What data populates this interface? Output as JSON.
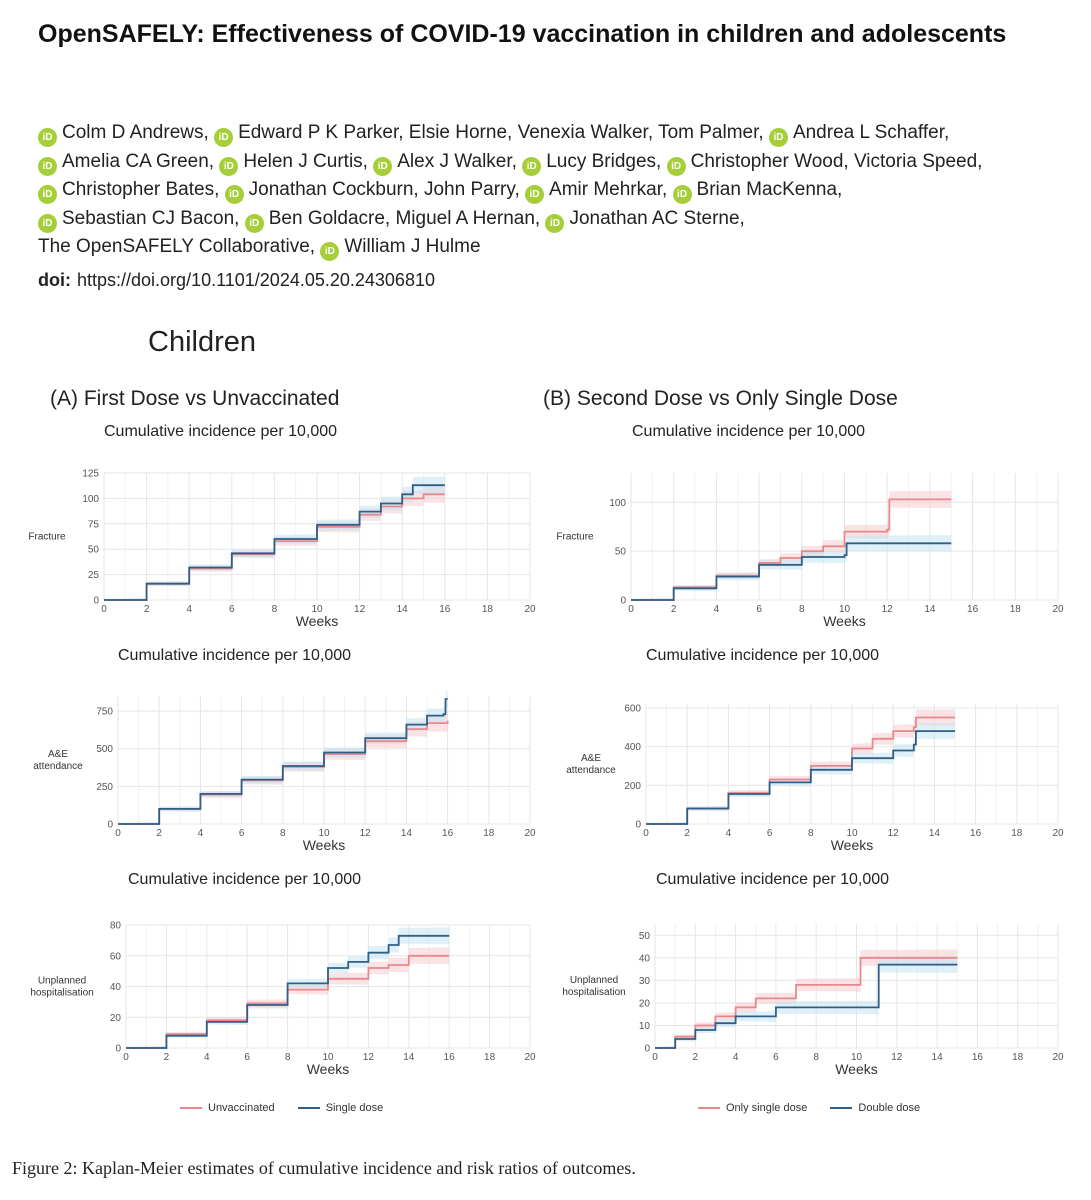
{
  "paper": {
    "title": "OpenSAFELY: Effectiveness of COVID-19 vaccination in children and adolescents",
    "authors": [
      {
        "name": "Colm D Andrews",
        "orcid": true
      },
      {
        "name": "Edward P K Parker",
        "orcid": true
      },
      {
        "name": "Elsie Horne",
        "orcid": false
      },
      {
        "name": "Venexia Walker",
        "orcid": false
      },
      {
        "name": "Tom Palmer",
        "orcid": false
      },
      {
        "name": "Andrea L Schaffer",
        "orcid": true
      },
      {
        "name": "Amelia CA Green",
        "orcid": true
      },
      {
        "name": "Helen J Curtis",
        "orcid": true
      },
      {
        "name": "Alex J Walker",
        "orcid": true
      },
      {
        "name": "Lucy Bridges",
        "orcid": true
      },
      {
        "name": "Christopher Wood",
        "orcid": true
      },
      {
        "name": "Victoria Speed",
        "orcid": false
      },
      {
        "name": "Christopher Bates",
        "orcid": true
      },
      {
        "name": "Jonathan Cockburn",
        "orcid": true
      },
      {
        "name": "John Parry",
        "orcid": false
      },
      {
        "name": "Amir Mehrkar",
        "orcid": true
      },
      {
        "name": "Brian MacKenna",
        "orcid": true
      },
      {
        "name": "Sebastian CJ Bacon",
        "orcid": true
      },
      {
        "name": "Ben Goldacre",
        "orcid": true
      },
      {
        "name": "Miguel A Hernan",
        "orcid": false
      },
      {
        "name": "Jonathan AC Sterne",
        "orcid": true
      },
      {
        "name": "The OpenSAFELY Collaborative",
        "orcid": false
      },
      {
        "name": "William J Hulme",
        "orcid": true
      }
    ],
    "orcid_badge": "iD",
    "doi_label": "doi:",
    "doi": "https://doi.org/10.1101/2024.05.20.24306810",
    "caption": "Figure 2: Kaplan-Meier estimates of cumulative incidence and risk ratios of outcomes."
  },
  "figure": {
    "group_title": "Children",
    "panel_a_title": "(A) First Dose vs Unvaccinated",
    "panel_b_title": "(B) Second Dose vs Only Single Dose",
    "legend_a": {
      "series1": "Unvaccinated",
      "series2": "Single dose"
    },
    "legend_b": {
      "series1": "Only single dose",
      "series2": "Double dose"
    },
    "colors": {
      "red": "#e8888c",
      "blue": "#2f5f86",
      "red_band": "#f6cccf",
      "blue_band": "#c4e4f2",
      "grid": "#e6e6e6"
    }
  },
  "chart_data": [
    {
      "id": "a1",
      "type": "line",
      "title": "Cumulative incidence per 10,000",
      "xlabel": "Weeks",
      "ylabel": "Fracture",
      "xlim": [
        0,
        20
      ],
      "ylim": [
        0,
        125
      ],
      "xticks": [
        0,
        2,
        4,
        6,
        8,
        10,
        12,
        14,
        16,
        18,
        20
      ],
      "yticks": [
        0,
        25,
        50,
        75,
        100,
        125
      ],
      "series": [
        {
          "name": "Unvaccinated",
          "color": "red",
          "x": [
            0,
            2,
            4,
            6,
            8,
            10,
            12,
            13,
            14,
            15,
            16
          ],
          "y": [
            0,
            16,
            31,
            45,
            58,
            72,
            84,
            92,
            100,
            104,
            104
          ]
        },
        {
          "name": "Single dose",
          "color": "blue",
          "x": [
            0,
            2,
            4,
            6,
            8,
            10,
            12,
            13,
            14,
            14.5,
            16
          ],
          "y": [
            0,
            16,
            32,
            46,
            60,
            74,
            87,
            95,
            104,
            113,
            113
          ]
        }
      ]
    },
    {
      "id": "a2",
      "type": "line",
      "title": "Cumulative incidence per 10,000",
      "xlabel": "Weeks",
      "ylabel": "A&E attendance",
      "xlim": [
        0,
        20
      ],
      "ylim": [
        0,
        850
      ],
      "xticks": [
        0,
        2,
        4,
        6,
        8,
        10,
        12,
        14,
        16,
        18,
        20
      ],
      "yticks": [
        0,
        250,
        500,
        750
      ],
      "series": [
        {
          "name": "Unvaccinated",
          "color": "red",
          "x": [
            0,
            2,
            4,
            6,
            8,
            10,
            12,
            14,
            15,
            16
          ],
          "y": [
            0,
            100,
            195,
            290,
            380,
            465,
            550,
            630,
            670,
            685
          ]
        },
        {
          "name": "Single dose",
          "color": "blue",
          "x": [
            0,
            2,
            4,
            6,
            8,
            10,
            12,
            14,
            15,
            15.8,
            15.9,
            16
          ],
          "y": [
            0,
            100,
            200,
            295,
            385,
            475,
            570,
            660,
            720,
            730,
            830,
            830
          ]
        }
      ]
    },
    {
      "id": "a3",
      "type": "line",
      "title": "Cumulative incidence per 10,000",
      "xlabel": "Weeks",
      "ylabel": "Unplanned hospitalisation",
      "xlim": [
        0,
        20
      ],
      "ylim": [
        0,
        80
      ],
      "xticks": [
        0,
        2,
        4,
        6,
        8,
        10,
        12,
        14,
        16,
        18,
        20
      ],
      "yticks": [
        0,
        20,
        40,
        60,
        80
      ],
      "series": [
        {
          "name": "Unvaccinated",
          "color": "red",
          "x": [
            0,
            2,
            4,
            6,
            8,
            10,
            12,
            13,
            14,
            16
          ],
          "y": [
            0,
            9,
            18,
            29,
            38,
            45,
            52,
            54,
            60,
            60
          ]
        },
        {
          "name": "Single dose",
          "color": "blue",
          "x": [
            0,
            2,
            4,
            6,
            8,
            10,
            11,
            12,
            13,
            13.5,
            16
          ],
          "y": [
            0,
            8,
            17,
            28,
            42,
            52,
            56,
            62,
            67,
            73,
            73
          ]
        }
      ]
    },
    {
      "id": "b1",
      "type": "line",
      "title": "Cumulative incidence per 10,000",
      "xlabel": "Weeks",
      "ylabel": "Fracture",
      "xlim": [
        0,
        20
      ],
      "ylim": [
        0,
        130
      ],
      "xticks": [
        0,
        2,
        4,
        6,
        8,
        10,
        12,
        14,
        16,
        18,
        20
      ],
      "yticks": [
        0,
        50,
        100
      ],
      "series": [
        {
          "name": "Only single dose",
          "color": "red",
          "x": [
            0,
            2,
            4,
            6,
            7,
            8,
            9,
            10,
            12,
            12.1,
            15
          ],
          "y": [
            0,
            13,
            25,
            38,
            43,
            50,
            55,
            70,
            72,
            103,
            103
          ]
        },
        {
          "name": "Double dose",
          "color": "blue",
          "x": [
            0,
            2,
            4,
            6,
            8,
            10,
            10.1,
            15
          ],
          "y": [
            0,
            12,
            24,
            36,
            44,
            46,
            58,
            58
          ]
        }
      ]
    },
    {
      "id": "b2",
      "type": "line",
      "title": "Cumulative incidence per 10,000",
      "xlabel": "Weeks",
      "ylabel": "A&E attendance",
      "xlim": [
        0,
        20
      ],
      "ylim": [
        0,
        620
      ],
      "xticks": [
        0,
        2,
        4,
        6,
        8,
        10,
        12,
        14,
        16,
        18,
        20
      ],
      "yticks": [
        0,
        200,
        400,
        600
      ],
      "series": [
        {
          "name": "Only single dose",
          "color": "red",
          "x": [
            0,
            2,
            4,
            6,
            8,
            10,
            11,
            12,
            13,
            13.1,
            15
          ],
          "y": [
            0,
            80,
            160,
            230,
            300,
            390,
            440,
            480,
            500,
            550,
            550
          ]
        },
        {
          "name": "Double dose",
          "color": "blue",
          "x": [
            0,
            2,
            4,
            6,
            8,
            10,
            12,
            13,
            13.1,
            15
          ],
          "y": [
            0,
            80,
            155,
            215,
            280,
            340,
            380,
            410,
            480,
            480
          ]
        }
      ]
    },
    {
      "id": "b3",
      "type": "line",
      "title": "Cumulative incidence per 10,000",
      "xlabel": "Weeks",
      "ylabel": "Unplanned hospitalisation",
      "xlim": [
        0,
        20
      ],
      "ylim": [
        0,
        55
      ],
      "xticks": [
        0,
        2,
        4,
        6,
        8,
        10,
        12,
        14,
        16,
        18,
        20
      ],
      "yticks": [
        0,
        10,
        20,
        30,
        40,
        50
      ],
      "series": [
        {
          "name": "Only single dose",
          "color": "red",
          "x": [
            0,
            1,
            2,
            3,
            4,
            5,
            7,
            10,
            10.2,
            15
          ],
          "y": [
            0,
            5,
            10,
            14,
            18,
            22,
            28,
            28,
            40,
            40
          ]
        },
        {
          "name": "Double dose",
          "color": "blue",
          "x": [
            0,
            1,
            2,
            3,
            4,
            5.5,
            6,
            11,
            11.1,
            15
          ],
          "y": [
            0,
            4,
            8,
            11,
            14,
            14,
            18,
            18,
            37,
            37
          ]
        }
      ]
    }
  ]
}
